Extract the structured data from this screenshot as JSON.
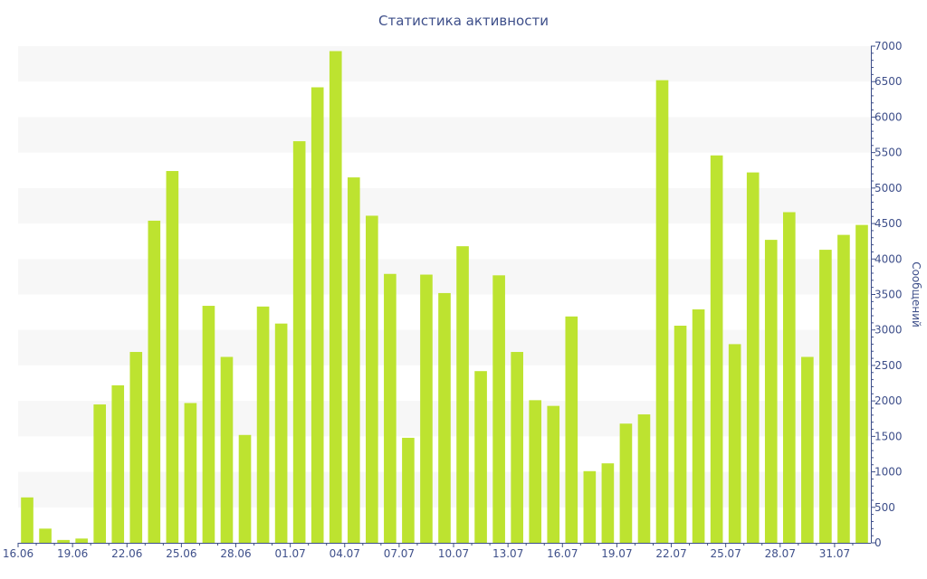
{
  "chart_data": {
    "type": "bar",
    "title": "Статистика активности",
    "ylabel": "Сообщений",
    "ylim": [
      0,
      7000
    ],
    "y_ticks": [
      0,
      500,
      1000,
      1500,
      2000,
      2500,
      3000,
      3500,
      4000,
      4500,
      5000,
      5500,
      6000,
      6500,
      7000
    ],
    "y_axis_side": "right",
    "grid": "alternating horizontal bands",
    "x_tick_labels": [
      "16.06",
      "19.06",
      "22.06",
      "25.06",
      "28.06",
      "01.07",
      "04.07",
      "07.07",
      "10.07",
      "13.07",
      "16.07",
      "19.07",
      "22.07",
      "25.07",
      "28.07",
      "31.07"
    ],
    "x_tick_every": 3,
    "categories": [
      "16.06",
      "17.06",
      "18.06",
      "19.06",
      "20.06",
      "21.06",
      "22.06",
      "23.06",
      "24.06",
      "25.06",
      "26.06",
      "27.06",
      "28.06",
      "29.06",
      "30.06",
      "01.07",
      "02.07",
      "03.07",
      "04.07",
      "05.07",
      "06.07",
      "07.07",
      "08.07",
      "09.07",
      "10.07",
      "11.07",
      "12.07",
      "13.07",
      "14.07",
      "15.07",
      "16.07",
      "17.07",
      "18.07",
      "19.07",
      "20.07",
      "21.07",
      "22.07",
      "23.07",
      "24.07",
      "25.07",
      "26.07",
      "27.07",
      "28.07",
      "29.07",
      "30.07",
      "31.07",
      "01.08"
    ],
    "values": [
      640,
      200,
      40,
      60,
      1950,
      2220,
      2690,
      4540,
      5240,
      1970,
      3340,
      2620,
      1520,
      3330,
      3090,
      5660,
      6420,
      6930,
      5150,
      4610,
      3790,
      1480,
      3780,
      3520,
      4180,
      2420,
      3770,
      2690,
      2010,
      1930,
      3190,
      1010,
      1120,
      1680,
      1810,
      6520,
      3060,
      3290,
      5460,
      2800,
      5220,
      4270,
      4660,
      2620,
      4130,
      4340,
      4480
    ],
    "colors": {
      "bar": "#bde330",
      "band": "#f7f7f7",
      "axis": "#3e4f8a",
      "text": "#3e4f8a"
    }
  }
}
